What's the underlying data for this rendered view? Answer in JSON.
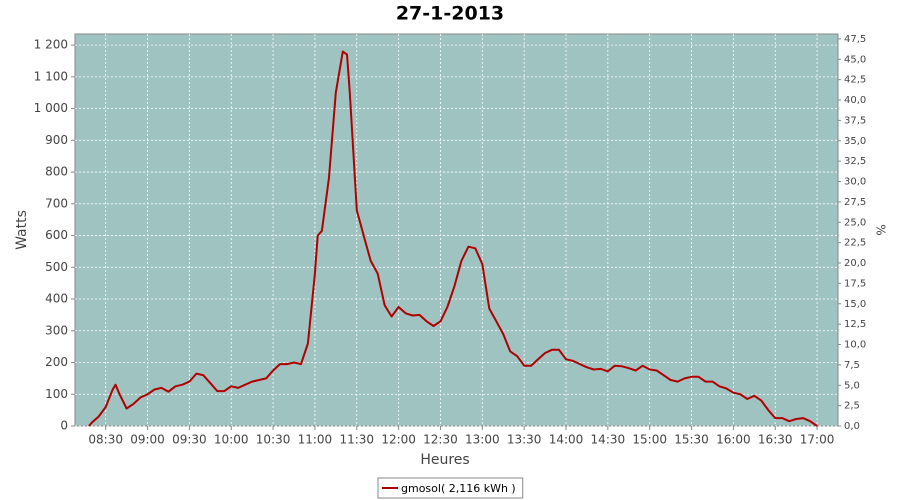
{
  "chart_data": {
    "type": "line",
    "title": "27-1-2013",
    "x_label": "Heures",
    "y_label": "Watts",
    "y2_label": "%",
    "x": [
      "08:18",
      "08:20",
      "08:25",
      "08:30",
      "08:35",
      "08:37",
      "08:40",
      "08:45",
      "08:50",
      "08:55",
      "09:00",
      "09:05",
      "09:10",
      "09:15",
      "09:20",
      "09:25",
      "09:30",
      "09:35",
      "09:40",
      "09:45",
      "09:50",
      "09:55",
      "10:00",
      "10:05",
      "10:10",
      "10:15",
      "10:20",
      "10:25",
      "10:30",
      "10:35",
      "10:40",
      "10:45",
      "10:50",
      "10:55",
      "11:00",
      "11:02",
      "11:05",
      "11:10",
      "11:15",
      "11:20",
      "11:23",
      "11:25",
      "11:30",
      "11:35",
      "11:40",
      "11:45",
      "11:50",
      "11:55",
      "12:00",
      "12:05",
      "12:10",
      "12:15",
      "12:20",
      "12:25",
      "12:30",
      "12:35",
      "12:40",
      "12:45",
      "12:50",
      "12:55",
      "13:00",
      "13:05",
      "13:10",
      "13:15",
      "13:20",
      "13:25",
      "13:30",
      "13:35",
      "13:40",
      "13:45",
      "13:50",
      "13:55",
      "14:00",
      "14:05",
      "14:10",
      "14:15",
      "14:20",
      "14:25",
      "14:30",
      "14:35",
      "14:40",
      "14:45",
      "14:50",
      "14:55",
      "15:00",
      "15:05",
      "15:10",
      "15:15",
      "15:20",
      "15:25",
      "15:30",
      "15:35",
      "15:40",
      "15:45",
      "15:50",
      "15:55",
      "16:00",
      "16:05",
      "16:10",
      "16:15",
      "16:20",
      "16:25",
      "16:30",
      "16:35",
      "16:40",
      "16:45",
      "16:50",
      "16:55",
      "17:00"
    ],
    "series": [
      {
        "name": "gmosol( 2,116 kWh )",
        "color": "#b00000",
        "values": [
          0,
          10,
          30,
          60,
          115,
          130,
          100,
          55,
          70,
          90,
          100,
          115,
          120,
          108,
          125,
          130,
          140,
          165,
          160,
          135,
          110,
          110,
          125,
          120,
          130,
          140,
          145,
          150,
          175,
          195,
          195,
          200,
          195,
          260,
          480,
          600,
          615,
          780,
          1050,
          1180,
          1170,
          1050,
          680,
          600,
          520,
          480,
          380,
          345,
          375,
          355,
          348,
          350,
          330,
          315,
          330,
          375,
          440,
          520,
          565,
          560,
          510,
          370,
          330,
          290,
          235,
          220,
          190,
          190,
          210,
          230,
          240,
          240,
          210,
          205,
          195,
          185,
          178,
          180,
          172,
          190,
          188,
          182,
          175,
          190,
          178,
          175,
          160,
          145,
          140,
          150,
          155,
          155,
          140,
          140,
          125,
          118,
          105,
          100,
          85,
          95,
          80,
          50,
          25,
          25,
          15,
          22,
          25,
          15,
          0
        ]
      }
    ],
    "xlim": [
      "08:08",
      "17:15"
    ],
    "xticks": [
      "08:30",
      "09:00",
      "09:30",
      "10:00",
      "10:30",
      "11:00",
      "11:30",
      "12:00",
      "12:30",
      "13:00",
      "13:30",
      "14:00",
      "14:30",
      "15:00",
      "15:30",
      "16:00",
      "16:30",
      "17:00"
    ],
    "ylim": [
      0,
      1235
    ],
    "yticks": [
      0,
      100,
      200,
      300,
      400,
      500,
      600,
      700,
      800,
      900,
      {
        "value": 1000,
        "label": "1 000"
      },
      {
        "value": 1100,
        "label": "1 100"
      },
      {
        "value": 1200,
        "label": "1 200"
      }
    ],
    "y2lim": [
      0,
      48.1
    ],
    "y2ticks": [
      {
        "value": 0,
        "label": "0,0"
      },
      {
        "value": 2.5,
        "label": "2,5"
      },
      {
        "value": 5,
        "label": "5,0"
      },
      {
        "value": 7.5,
        "label": "7,5"
      },
      {
        "value": 10,
        "label": "10,0"
      },
      {
        "value": 12.5,
        "label": "12,5"
      },
      {
        "value": 15,
        "label": "15,0"
      },
      {
        "value": 17.5,
        "label": "17,5"
      },
      {
        "value": 20,
        "label": "20,0"
      },
      {
        "value": 22.5,
        "label": "22,5"
      },
      {
        "value": 25,
        "label": "25,0"
      },
      {
        "value": 27.5,
        "label": "27,5"
      },
      {
        "value": 30,
        "label": "30,0"
      },
      {
        "value": 32.5,
        "label": "32,5"
      },
      {
        "value": 35,
        "label": "35,0"
      },
      {
        "value": 37.5,
        "label": "37,5"
      },
      {
        "value": 40,
        "label": "40,0"
      },
      {
        "value": 42.5,
        "label": "42,5"
      },
      {
        "value": 45,
        "label": "45,0"
      },
      {
        "value": 47.5,
        "label": "47,5"
      }
    ],
    "grid": true,
    "plot_background": "#9fc3c1",
    "legend": "bottom"
  }
}
